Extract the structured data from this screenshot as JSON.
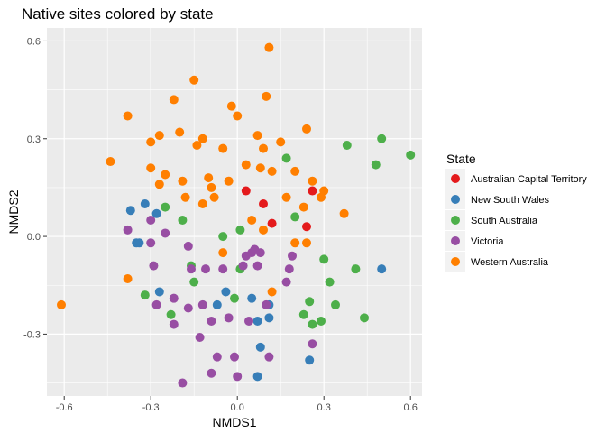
{
  "chart_data": {
    "type": "scatter",
    "title": "Native sites colored by state",
    "xlabel": "NMDS1",
    "ylabel": "NMDS2",
    "xlim": [
      -0.66,
      0.64
    ],
    "ylim": [
      -0.49,
      0.64
    ],
    "x_ticks": [
      -0.6,
      -0.3,
      0.0,
      0.3,
      0.6
    ],
    "x_tick_labels": [
      "-0.6",
      "-0.3",
      "0.0",
      "0.3",
      "0.6"
    ],
    "y_ticks": [
      -0.3,
      0.0,
      0.3,
      0.6
    ],
    "y_tick_labels": [
      "-0.3",
      "0.0",
      "0.3",
      "0.6"
    ],
    "grid": true,
    "legend_title": "State",
    "legend_position": "right",
    "series": [
      {
        "name": "Australian Capital Territory",
        "color": "#e41a1c",
        "points": [
          [
            0.03,
            0.14
          ],
          [
            0.09,
            0.1
          ],
          [
            0.12,
            0.04
          ],
          [
            0.24,
            0.03
          ],
          [
            0.26,
            0.14
          ]
        ]
      },
      {
        "name": "New South Wales",
        "color": "#377eb8",
        "points": [
          [
            -0.37,
            0.08
          ],
          [
            -0.32,
            0.1
          ],
          [
            -0.28,
            0.07
          ],
          [
            -0.35,
            -0.02
          ],
          [
            -0.34,
            -0.02
          ],
          [
            -0.27,
            -0.17
          ],
          [
            -0.07,
            -0.21
          ],
          [
            -0.04,
            -0.17
          ],
          [
            0.05,
            -0.19
          ],
          [
            0.07,
            -0.26
          ],
          [
            0.08,
            -0.34
          ],
          [
            0.07,
            -0.43
          ],
          [
            0.11,
            -0.21
          ],
          [
            0.11,
            -0.25
          ],
          [
            0.25,
            -0.38
          ],
          [
            0.5,
            -0.1
          ]
        ]
      },
      {
        "name": "South Australia",
        "color": "#4daf4a",
        "points": [
          [
            -0.25,
            0.09
          ],
          [
            -0.19,
            0.05
          ],
          [
            -0.16,
            -0.09
          ],
          [
            -0.15,
            -0.14
          ],
          [
            -0.23,
            -0.24
          ],
          [
            -0.32,
            -0.18
          ],
          [
            -0.05,
            0.0
          ],
          [
            0.01,
            0.02
          ],
          [
            0.01,
            -0.1
          ],
          [
            -0.01,
            -0.19
          ],
          [
            0.17,
            0.24
          ],
          [
            0.2,
            0.06
          ],
          [
            0.3,
            -0.07
          ],
          [
            0.32,
            -0.14
          ],
          [
            0.41,
            -0.1
          ],
          [
            0.38,
            0.28
          ],
          [
            0.48,
            0.22
          ],
          [
            0.5,
            0.3
          ],
          [
            0.6,
            0.25
          ],
          [
            0.25,
            -0.2
          ],
          [
            0.34,
            -0.21
          ],
          [
            0.44,
            -0.25
          ],
          [
            0.23,
            -0.24
          ],
          [
            0.26,
            -0.27
          ],
          [
            0.29,
            -0.26
          ]
        ]
      },
      {
        "name": "Victoria",
        "color": "#984ea3",
        "points": [
          [
            -0.38,
            0.02
          ],
          [
            -0.3,
            0.05
          ],
          [
            -0.3,
            -0.02
          ],
          [
            -0.25,
            0.01
          ],
          [
            -0.29,
            -0.09
          ],
          [
            -0.28,
            -0.21
          ],
          [
            -0.22,
            -0.19
          ],
          [
            -0.22,
            -0.27
          ],
          [
            -0.17,
            -0.22
          ],
          [
            -0.16,
            -0.1
          ],
          [
            -0.17,
            -0.03
          ],
          [
            -0.12,
            -0.21
          ],
          [
            -0.09,
            -0.26
          ],
          [
            -0.13,
            -0.31
          ],
          [
            -0.07,
            -0.37
          ],
          [
            -0.09,
            -0.42
          ],
          [
            -0.19,
            -0.45
          ],
          [
            -0.03,
            -0.25
          ],
          [
            -0.01,
            -0.37
          ],
          [
            0.0,
            -0.43
          ],
          [
            -0.11,
            -0.1
          ],
          [
            -0.05,
            -0.1
          ],
          [
            0.02,
            -0.09
          ],
          [
            0.03,
            -0.06
          ],
          [
            0.05,
            -0.05
          ],
          [
            0.06,
            -0.04
          ],
          [
            0.08,
            -0.05
          ],
          [
            0.07,
            -0.09
          ],
          [
            0.04,
            -0.26
          ],
          [
            0.1,
            -0.21
          ],
          [
            0.11,
            -0.37
          ],
          [
            0.17,
            -0.14
          ],
          [
            0.18,
            -0.1
          ],
          [
            0.19,
            -0.06
          ],
          [
            0.26,
            -0.33
          ]
        ]
      },
      {
        "name": "Western Australia",
        "color": "#ff7f00",
        "points": [
          [
            -0.61,
            -0.21
          ],
          [
            -0.44,
            0.23
          ],
          [
            -0.38,
            0.37
          ],
          [
            -0.38,
            -0.13
          ],
          [
            -0.3,
            0.21
          ],
          [
            -0.3,
            0.29
          ],
          [
            -0.27,
            0.31
          ],
          [
            -0.27,
            0.16
          ],
          [
            -0.25,
            0.19
          ],
          [
            -0.22,
            0.42
          ],
          [
            -0.2,
            0.32
          ],
          [
            -0.19,
            0.17
          ],
          [
            -0.18,
            0.12
          ],
          [
            -0.15,
            0.48
          ],
          [
            -0.14,
            0.28
          ],
          [
            -0.12,
            0.3
          ],
          [
            -0.12,
            0.1
          ],
          [
            -0.1,
            0.18
          ],
          [
            -0.08,
            0.12
          ],
          [
            -0.09,
            0.15
          ],
          [
            -0.05,
            0.27
          ],
          [
            -0.03,
            0.17
          ],
          [
            -0.02,
            0.4
          ],
          [
            0.0,
            0.37
          ],
          [
            -0.05,
            -0.05
          ],
          [
            0.03,
            0.22
          ],
          [
            0.05,
            0.05
          ],
          [
            0.07,
            0.31
          ],
          [
            0.08,
            0.21
          ],
          [
            0.09,
            0.27
          ],
          [
            0.1,
            0.43
          ],
          [
            0.11,
            0.58
          ],
          [
            0.12,
            0.2
          ],
          [
            0.15,
            0.29
          ],
          [
            0.17,
            0.12
          ],
          [
            0.2,
            0.2
          ],
          [
            0.23,
            0.09
          ],
          [
            0.24,
            0.33
          ],
          [
            0.26,
            0.17
          ],
          [
            0.29,
            0.12
          ],
          [
            0.3,
            0.14
          ],
          [
            0.37,
            0.07
          ],
          [
            0.2,
            -0.02
          ],
          [
            0.24,
            -0.02
          ],
          [
            0.12,
            -0.17
          ],
          [
            0.09,
            0.02
          ]
        ]
      }
    ]
  }
}
